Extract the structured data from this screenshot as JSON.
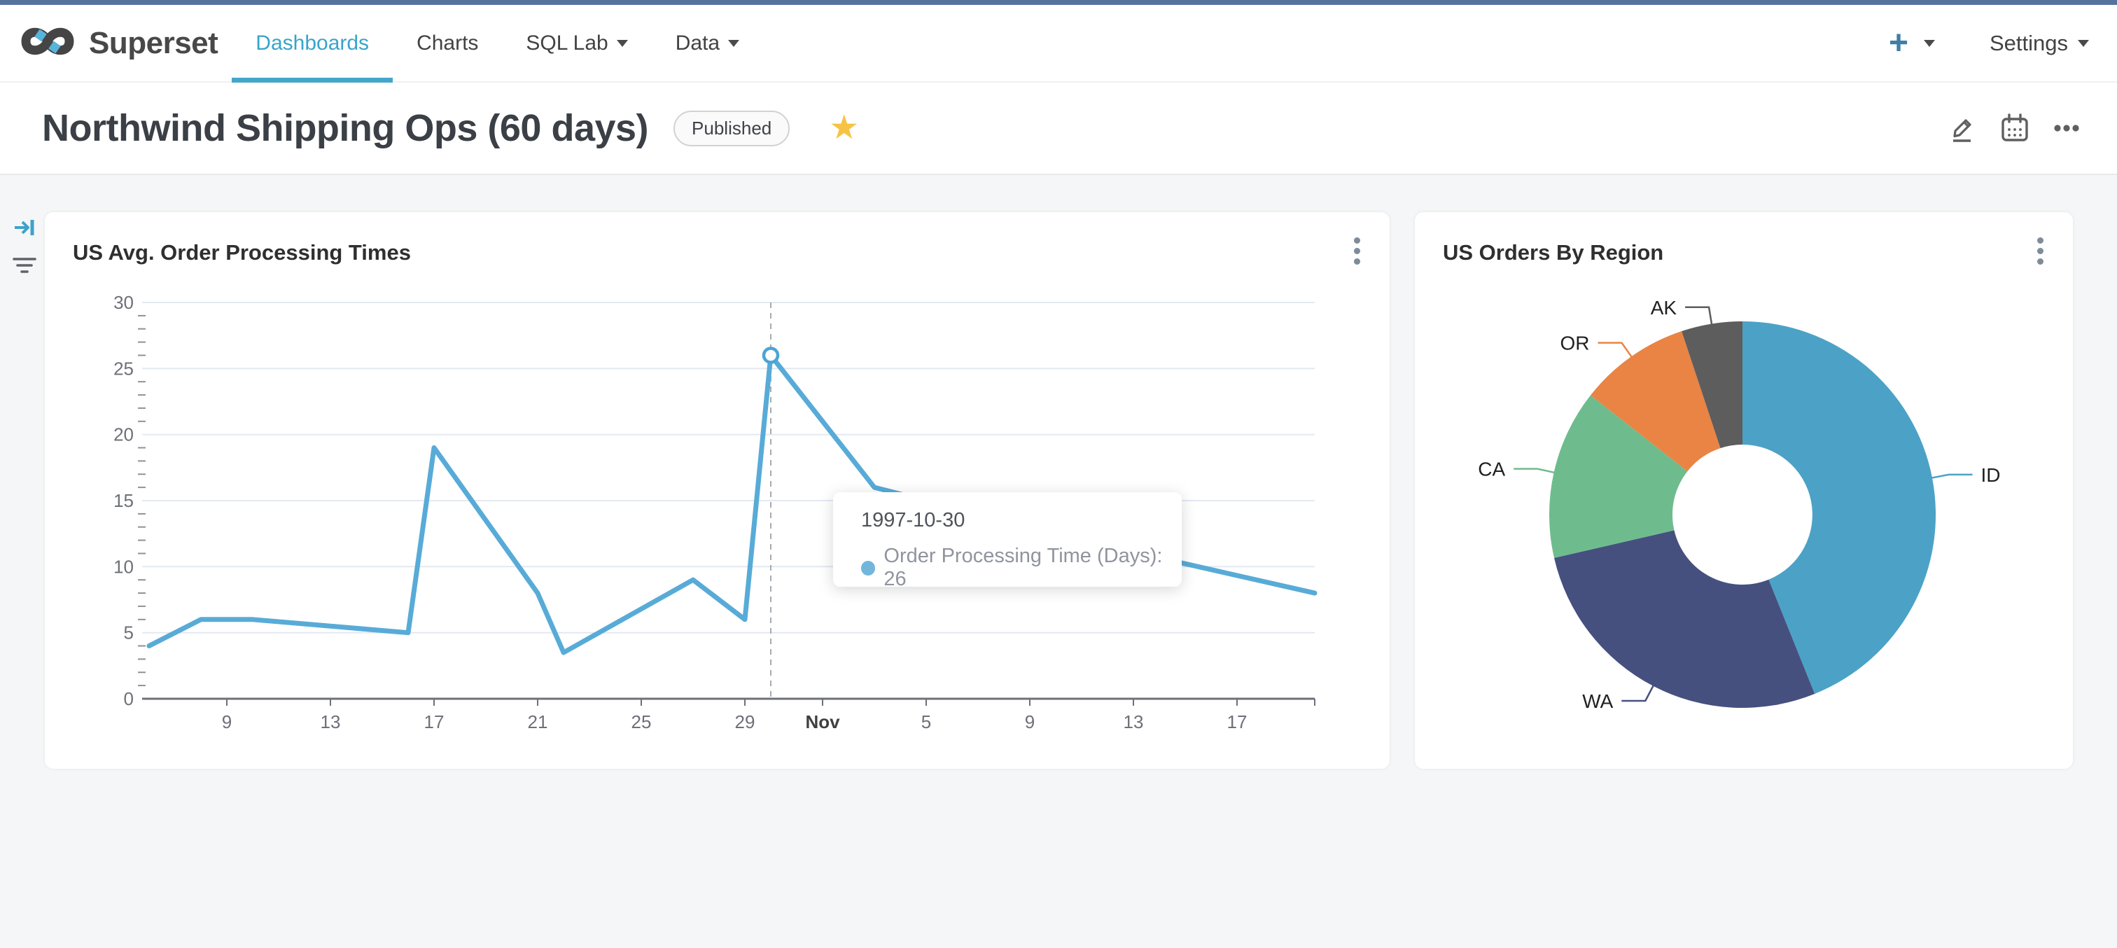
{
  "nav": {
    "brand": "Superset",
    "items": [
      {
        "label": "Dashboards",
        "active": true,
        "caret": false
      },
      {
        "label": "Charts",
        "active": false,
        "caret": false
      },
      {
        "label": "SQL Lab",
        "active": false,
        "caret": true
      },
      {
        "label": "Data",
        "active": false,
        "caret": true
      }
    ],
    "plus_label": "+",
    "settings_label": "Settings"
  },
  "header": {
    "title": "Northwind Shipping Ops (60 days)",
    "badge": "Published",
    "star_icon": "★"
  },
  "colors": {
    "topstrip": "#54749E",
    "nav_active": "#38A4CB",
    "line_series": "#58ABD7",
    "marker_ring": "#4AA5D5",
    "grid": "#E4E8F1",
    "axis": "#6E7079",
    "content_bg": "#F5F6F7"
  },
  "chart_data": [
    {
      "type": "line",
      "title": "US Avg. Order Processing Times",
      "series": [
        {
          "name": "Order Processing Time (Days)",
          "color": "#58ABD7"
        }
      ],
      "x": [
        "1997-10-06",
        "1997-10-08",
        "1997-10-10",
        "1997-10-16",
        "1997-10-17",
        "1997-10-21",
        "1997-10-22",
        "1997-10-27",
        "1997-10-29",
        "1997-10-30",
        "1997-11-03",
        "1997-11-11",
        "1997-11-20"
      ],
      "values": [
        4,
        6,
        6,
        5,
        19,
        8,
        3.5,
        9,
        6,
        26,
        16,
        12,
        8
      ],
      "day_index": [
        0,
        2,
        4,
        10,
        11,
        15,
        16,
        21,
        23,
        24,
        28,
        36,
        45
      ],
      "x_domain": [
        0,
        45
      ],
      "ylim": [
        0,
        30
      ],
      "ytick_step": 5,
      "xlabel": "",
      "ylabel": "",
      "grid": true,
      "xticks": [
        {
          "d": 3,
          "label": "9",
          "bold": false
        },
        {
          "d": 7,
          "label": "13",
          "bold": false
        },
        {
          "d": 11,
          "label": "17",
          "bold": false
        },
        {
          "d": 15,
          "label": "21",
          "bold": false
        },
        {
          "d": 19,
          "label": "25",
          "bold": false
        },
        {
          "d": 23,
          "label": "29",
          "bold": false
        },
        {
          "d": 26,
          "label": "Nov",
          "bold": true
        },
        {
          "d": 30,
          "label": "5",
          "bold": false
        },
        {
          "d": 34,
          "label": "9",
          "bold": false
        },
        {
          "d": 38,
          "label": "13",
          "bold": false
        },
        {
          "d": 42,
          "label": "17",
          "bold": false
        }
      ],
      "highlight": {
        "date": "1997-10-30",
        "day": 24,
        "value": 26,
        "tooltip_line": "Order Processing Time (Days): 26"
      }
    },
    {
      "type": "pie",
      "title": "US Orders By Region",
      "donut": true,
      "labels": [
        "ID",
        "WA",
        "CA",
        "OR",
        "AK"
      ],
      "values": [
        43.9,
        27.5,
        14.2,
        9.3,
        5.1
      ],
      "unit": "percent_of_orders",
      "colors": [
        "#4BA2C6",
        "#46507F",
        "#6EBC8D",
        "#E98445",
        "#5D5D5D"
      ],
      "legend": "labels-with-leader-lines"
    }
  ]
}
